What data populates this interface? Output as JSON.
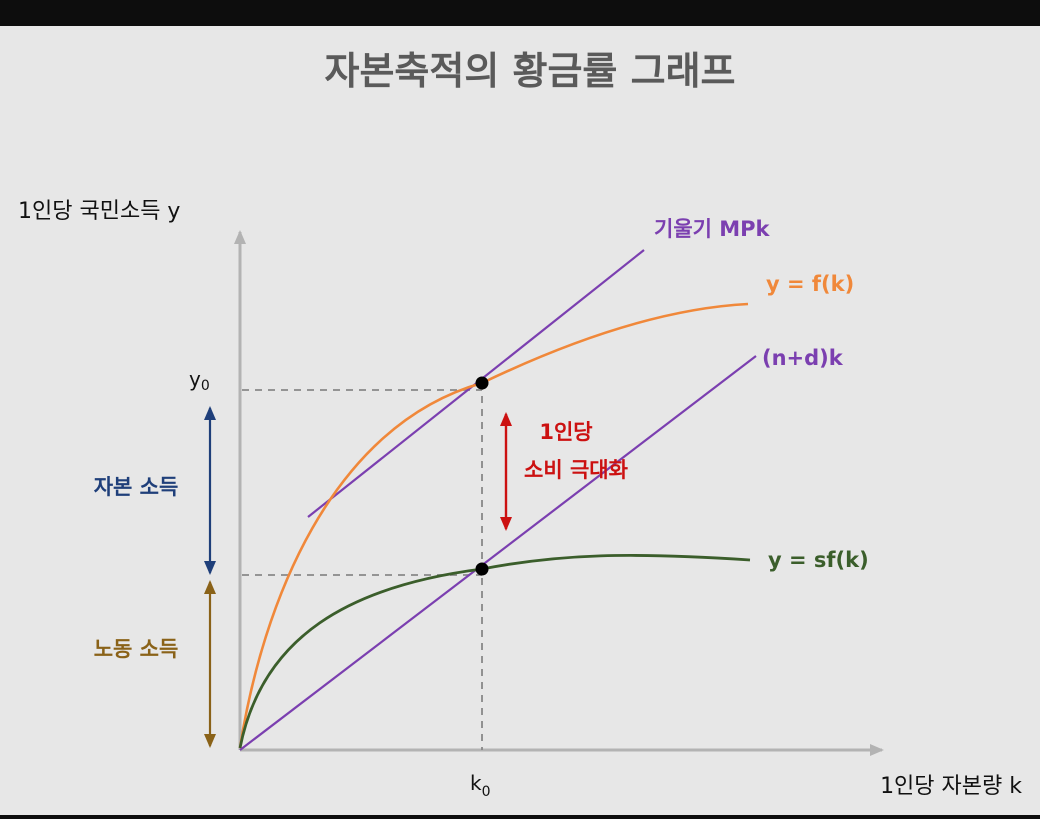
{
  "title": "자본축적의 황금률 그래프",
  "axes": {
    "y_label": "1인당 국민소득 y",
    "x_label": "1인당 자본량 k",
    "y_tick": "y0",
    "x_tick": "k0"
  },
  "curves": {
    "production": {
      "label": "y = f(k)",
      "color": "#f0883a"
    },
    "saving": {
      "label": "y = sf(k)",
      "color": "#3b5e2b"
    },
    "break_even": {
      "label": "(n+d)k",
      "color": "#7b3fb0"
    },
    "tangent": {
      "label": "기울기 MPk",
      "color": "#7b3fb0"
    }
  },
  "annotations": {
    "consumption": {
      "line1": "1인당",
      "line2": "소비 극대화",
      "color": "#cc1111"
    },
    "capital_income": {
      "label": "자본 소득",
      "color": "#1f3f7a"
    },
    "labor_income": {
      "label": "노동 소득",
      "color": "#8a6218"
    }
  },
  "colors": {
    "axis": "#b3b3b3",
    "guide": "#888888",
    "point": "#000000"
  }
}
